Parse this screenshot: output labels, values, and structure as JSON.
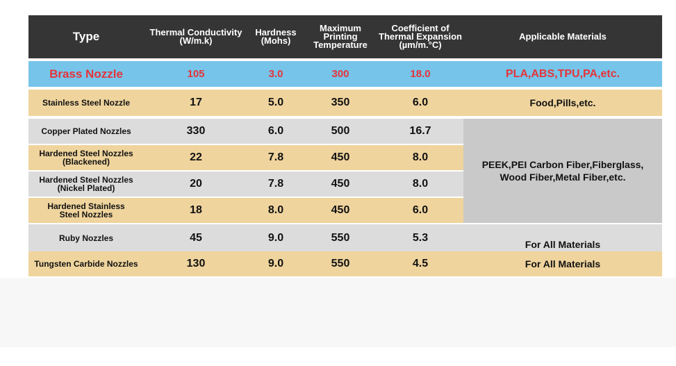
{
  "table": {
    "headers": {
      "type": "Type",
      "thermal_conductivity": "Thermal Conductivity\n(W/m.k)",
      "hardness": "Hardness\n(Mohs)",
      "max_temp": "Maximum\nPrinting\nTemperature",
      "cte": "Coefficient of\nThermal Expansion\n(µm/m.°C)",
      "materials": "Applicable Materials"
    },
    "rows": [
      {
        "type": "Brass Nozzle",
        "tc": "105",
        "hardness": "3.0",
        "temp": "300",
        "cte": "18.0",
        "materials": "PLA,ABS,TPU,PA,etc."
      },
      {
        "type": "Stainless Steel Nozzle",
        "tc": "17",
        "hardness": "5.0",
        "temp": "350",
        "cte": "6.0",
        "materials": "Food,Pills,etc."
      },
      {
        "type": "Copper Plated Nozzles",
        "tc": "330",
        "hardness": "6.0",
        "temp": "500",
        "cte": "16.7"
      },
      {
        "type": "Hardened Steel Nozzles\n(Blackened)",
        "tc": "22",
        "hardness": "7.8",
        "temp": "450",
        "cte": "8.0"
      },
      {
        "type": "Hardened Steel Nozzles\n(Nickel Plated)",
        "tc": "20",
        "hardness": "7.8",
        "temp": "450",
        "cte": "8.0"
      },
      {
        "type": "Hardened Stainless\nSteel Nozzles",
        "tc": "18",
        "hardness": "8.0",
        "temp": "450",
        "cte": "6.0"
      },
      {
        "type": "Ruby Nozzles",
        "tc": "45",
        "hardness": "9.0",
        "temp": "550",
        "cte": "5.3",
        "materials": "For All Materials"
      },
      {
        "type": "Tungsten Carbide Nozzles",
        "tc": "130",
        "hardness": "9.0",
        "temp": "550",
        "cte": "4.5",
        "materials": "For All Materials"
      }
    ],
    "merged_materials": "PEEK,PEI Carbon Fiber,Fiberglass,\nWood Fiber,Metal Fiber,etc."
  }
}
